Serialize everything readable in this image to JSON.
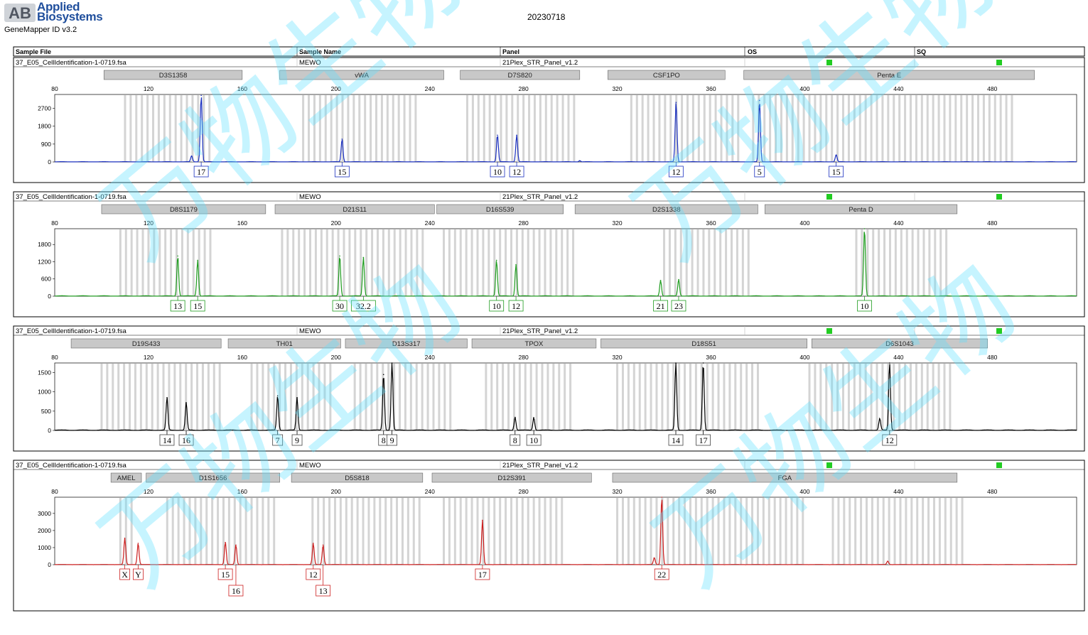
{
  "header": {
    "brand_logo": "AB",
    "brand_line1": "Applied",
    "brand_line2": "Biosystems",
    "app_name": "GeneMapper ID v3.2",
    "report_date": "20230718"
  },
  "table_columns": [
    "Sample File",
    "Sample Name",
    "Panel",
    "OS",
    "SQ"
  ],
  "watermark_text": "万物生物",
  "chart_data": [
    {
      "type": "line",
      "color": "#1a2fbf",
      "sample_file": "37_E05_CellIdentification-1-0719.fsa",
      "sample_name": "MEWO",
      "panel": "21Plex_STR_Panel_v1.2",
      "os_status_color": "#22cc22",
      "sq_status_color": "#22cc22",
      "show_header_row": true,
      "x_ticks": [
        80,
        120,
        160,
        200,
        240,
        280,
        320,
        360,
        400,
        440,
        480
      ],
      "xlim": [
        80,
        516
      ],
      "y_ticks": [
        0,
        900,
        1800,
        2700
      ],
      "ylim": [
        0,
        3400
      ],
      "markers": [
        {
          "name": "D3S1358",
          "start": 101,
          "end": 160
        },
        {
          "name": "vWA",
          "start": 176,
          "end": 246
        },
        {
          "name": "D7S820",
          "start": 253,
          "end": 304
        },
        {
          "name": "CSF1PO",
          "start": 316,
          "end": 366
        },
        {
          "name": "Penta E",
          "start": 374,
          "end": 498
        }
      ],
      "bin_ranges": [
        [
          110,
          147
        ],
        [
          186,
          236
        ],
        [
          256,
          302
        ],
        [
          326,
          372
        ],
        [
          378,
          490
        ]
      ],
      "peaks": [
        {
          "x": 138.4,
          "h": 300
        },
        {
          "x": 142.5,
          "h": 3350
        },
        {
          "x": 202.6,
          "h": 1150
        },
        {
          "x": 268.9,
          "h": 1350
        },
        {
          "x": 277.1,
          "h": 1350
        },
        {
          "x": 304,
          "h": 60
        },
        {
          "x": 345.1,
          "h": 3000
        },
        {
          "x": 380.7,
          "h": 3100
        },
        {
          "x": 413.4,
          "h": 350
        }
      ],
      "alleles": [
        {
          "label": "17",
          "x": 142.5
        },
        {
          "label": "15",
          "x": 202.6
        },
        {
          "label": "10",
          "x": 268.9
        },
        {
          "label": "12",
          "x": 277.1
        },
        {
          "label": "12",
          "x": 345.1
        },
        {
          "label": "5",
          "x": 380.7
        },
        {
          "label": "15",
          "x": 413.4
        }
      ]
    },
    {
      "type": "line",
      "color": "#1f9c1f",
      "sample_file": "37_E05_CellIdentification-1-0719.fsa",
      "sample_name": "MEWO",
      "panel": "21Plex_STR_Panel_v1.2",
      "os_status_color": "#22cc22",
      "sq_status_color": "#22cc22",
      "show_header_row": true,
      "x_ticks": [
        80,
        120,
        160,
        200,
        240,
        280,
        320,
        360,
        400,
        440,
        480
      ],
      "xlim": [
        80,
        516
      ],
      "y_ticks": [
        0,
        600,
        1200,
        1800
      ],
      "ylim": [
        0,
        2350
      ],
      "markers": [
        {
          "name": "D8S1179",
          "start": 100,
          "end": 170
        },
        {
          "name": "D21S11",
          "start": 174,
          "end": 242
        },
        {
          "name": "D16S539",
          "start": 243,
          "end": 297
        },
        {
          "name": "D2S1338",
          "start": 302,
          "end": 380
        },
        {
          "name": "Penta D",
          "start": 383,
          "end": 465
        }
      ],
      "bin_ranges": [
        [
          108,
          148
        ],
        [
          177,
          238
        ],
        [
          246,
          302
        ],
        [
          340,
          376
        ],
        [
          422,
          462
        ]
      ],
      "peaks": [
        {
          "x": 132.5,
          "h": 1400
        },
        {
          "x": 141.0,
          "h": 1250
        },
        {
          "x": 201.6,
          "h": 1400
        },
        {
          "x": 211.7,
          "h": 1350
        },
        {
          "x": 268.5,
          "h": 1250
        },
        {
          "x": 276.8,
          "h": 1100
        },
        {
          "x": 338.5,
          "h": 550
        },
        {
          "x": 346.2,
          "h": 580
        },
        {
          "x": 425.5,
          "h": 2350
        }
      ],
      "alleles": [
        {
          "label": "13",
          "x": 132.5
        },
        {
          "label": "15",
          "x": 141.0
        },
        {
          "label": "30",
          "x": 201.6
        },
        {
          "label": "32.2",
          "x": 211.7
        },
        {
          "label": "10",
          "x": 268.5
        },
        {
          "label": "12",
          "x": 276.8
        },
        {
          "label": "21",
          "x": 338.5
        },
        {
          "label": "23",
          "x": 346.2
        },
        {
          "label": "10",
          "x": 425.5
        }
      ]
    },
    {
      "type": "line",
      "color": "#000000",
      "sample_file": "37_E05_CellIdentification-1-0719.fsa",
      "sample_name": "MEWO",
      "panel": "21Plex_STR_Panel_v1.2",
      "os_status_color": "#22cc22",
      "sq_status_color": "#22cc22",
      "show_header_row": true,
      "x_ticks": [
        80,
        120,
        160,
        200,
        240,
        280,
        320,
        360,
        400,
        440,
        480
      ],
      "xlim": [
        80,
        516
      ],
      "y_ticks": [
        0,
        500,
        1000,
        1500
      ],
      "ylim": [
        0,
        1750
      ],
      "markers": [
        {
          "name": "D19S433",
          "start": 87,
          "end": 151
        },
        {
          "name": "TH01",
          "start": 154,
          "end": 202
        },
        {
          "name": "D13S317",
          "start": 204,
          "end": 256
        },
        {
          "name": "TPOX",
          "start": 258,
          "end": 311
        },
        {
          "name": "D18S51",
          "start": 313,
          "end": 401
        },
        {
          "name": "D6S1043",
          "start": 403,
          "end": 478
        }
      ],
      "bin_ranges": [
        [
          100,
          152
        ],
        [
          164,
          198
        ],
        [
          208,
          250
        ],
        [
          264,
          300
        ],
        [
          320,
          382
        ],
        [
          402,
          462
        ]
      ],
      "peaks": [
        {
          "x": 127.9,
          "h": 850
        },
        {
          "x": 136.1,
          "h": 720
        },
        {
          "x": 175.1,
          "h": 900
        },
        {
          "x": 183.4,
          "h": 850
        },
        {
          "x": 220.3,
          "h": 1450
        },
        {
          "x": 223.9,
          "h": 1750
        },
        {
          "x": 276.4,
          "h": 340
        },
        {
          "x": 284.4,
          "h": 330
        },
        {
          "x": 345.0,
          "h": 1750
        },
        {
          "x": 356.7,
          "h": 1750
        },
        {
          "x": 436.2,
          "h": 1750
        },
        {
          "x": 432,
          "h": 300
        }
      ],
      "alleles": [
        {
          "label": "14",
          "x": 127.9
        },
        {
          "label": "16",
          "x": 136.1
        },
        {
          "label": "7",
          "x": 175.1
        },
        {
          "label": "9",
          "x": 183.4
        },
        {
          "label": "8",
          "x": 220.3
        },
        {
          "label": "9",
          "x": 223.9
        },
        {
          "label": "8",
          "x": 276.4
        },
        {
          "label": "10",
          "x": 284.4
        },
        {
          "label": "14",
          "x": 345.0
        },
        {
          "label": "17",
          "x": 356.7
        },
        {
          "label": "12",
          "x": 436.2
        }
      ]
    },
    {
      "type": "line",
      "color": "#cc1f1f",
      "sample_file": "37_E05_CellIdentification-1-0719.fsa",
      "sample_name": "MEWO",
      "panel": "21Plex_STR_Panel_v1.2",
      "os_status_color": "#22cc22",
      "sq_status_color": "#22cc22",
      "show_header_row": true,
      "x_ticks": [
        80,
        120,
        160,
        200,
        240,
        280,
        320,
        360,
        400,
        440,
        480
      ],
      "xlim": [
        80,
        516
      ],
      "y_ticks": [
        0,
        1000,
        2000,
        3000
      ],
      "ylim": [
        0,
        3950
      ],
      "markers": [
        {
          "name": "AMEL",
          "start": 104,
          "end": 117
        },
        {
          "name": "D1S1656",
          "start": 119,
          "end": 176
        },
        {
          "name": "D5S818",
          "start": 181,
          "end": 237
        },
        {
          "name": "D12S391",
          "start": 241,
          "end": 309
        },
        {
          "name": "FGA",
          "start": 318,
          "end": 465
        }
      ],
      "bin_ranges": [
        [
          108,
          113
        ],
        [
          128,
          174
        ],
        [
          190,
          238
        ],
        [
          246,
          298
        ],
        [
          320,
          400
        ],
        [
          412,
          468
        ]
      ],
      "peaks": [
        {
          "x": 109.9,
          "h": 1550
        },
        {
          "x": 115.6,
          "h": 1250
        },
        {
          "x": 152.8,
          "h": 1300
        },
        {
          "x": 157.3,
          "h": 1150
        },
        {
          "x": 190.3,
          "h": 1250
        },
        {
          "x": 194.5,
          "h": 1150
        },
        {
          "x": 262.5,
          "h": 2600
        },
        {
          "x": 339.0,
          "h": 3950
        },
        {
          "x": 335.8,
          "h": 400
        },
        {
          "x": 435.4,
          "h": 200
        }
      ],
      "alleles": [
        {
          "label": "X",
          "x": 109.9,
          "row": 0
        },
        {
          "label": "Y",
          "x": 115.6,
          "row": 0
        },
        {
          "label": "15",
          "x": 152.8,
          "row": 0
        },
        {
          "label": "16",
          "x": 157.3,
          "row": 1
        },
        {
          "label": "12",
          "x": 190.3,
          "row": 0
        },
        {
          "label": "13",
          "x": 194.5,
          "row": 1
        },
        {
          "label": "17",
          "x": 262.5,
          "row": 0
        },
        {
          "label": "22",
          "x": 339.0,
          "row": 0
        }
      ]
    }
  ]
}
